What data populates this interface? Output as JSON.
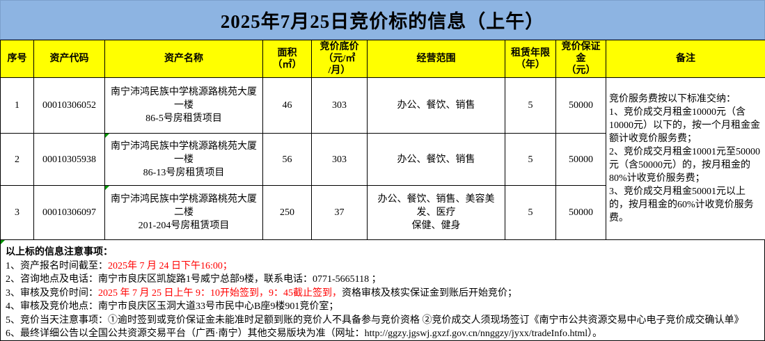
{
  "title": "2025年7月25日竞价标的信息（上午）",
  "colors": {
    "title_bg": "#8DB4E2",
    "header_bg": "#FFFF00",
    "text": "#000000",
    "highlight_red": "#FF0000",
    "marker_green": "#009900",
    "border": "#000000"
  },
  "table": {
    "headers": [
      {
        "id": "seq",
        "label": "序号"
      },
      {
        "id": "code",
        "label": "资产代码"
      },
      {
        "id": "name",
        "label": "资产名称"
      },
      {
        "id": "area",
        "label": "面积\n（㎡）"
      },
      {
        "id": "base-price",
        "label": "竞价底价\n（元/㎡\n/月）"
      },
      {
        "id": "scope",
        "label": "经营范围"
      },
      {
        "id": "lease-years",
        "label": "租赁年限\n（年）"
      },
      {
        "id": "deposit",
        "label": "竞价保证金\n（元）"
      },
      {
        "id": "remark",
        "label": "备注"
      }
    ],
    "rows": [
      {
        "seq": "1",
        "code": "00010306052",
        "name": "南宁沛鸿民族中学桃源路桃苑大厦一楼\n86-5号房租赁项目",
        "area": "46",
        "base_price": "303",
        "scope": "办公、餐饮、销售",
        "lease_years": "5",
        "deposit": "50000",
        "corner_marker": false
      },
      {
        "seq": "2",
        "code": "00010305938",
        "name": "南宁沛鸿民族中学桃源路桃苑大厦一楼\n86-13号房租赁项目",
        "area": "56",
        "base_price": "303",
        "scope": "办公、餐饮、销售",
        "lease_years": "5",
        "deposit": "50000",
        "corner_marker": true
      },
      {
        "seq": "3",
        "code": "00010306097",
        "name": "南宁沛鸿民族中学桃源路桃苑大厦二楼\n201-204号房租赁项目",
        "area": "250",
        "base_price": "37",
        "scope": "办公、餐饮、销售、美容美发、医疗\n保健、健身",
        "lease_years": "5",
        "deposit": "50000",
        "corner_marker": true
      }
    ],
    "remark": "竞价服务费按以下标准交纳：\n1、竞价成交月租金10000元（含10000元）以下的，按一个月租金金额计收竞价服务费；\n2、竞价成交月租金10001元至50000元（含50000元）的，按月租金的80%计收竞价服务费；\n3、竞价成交月租金50001元以上的，按月租金的60%计收竞价服务费。"
  },
  "notes": {
    "heading": "以上标的信息注意事项：",
    "corner_marker": true,
    "lines": [
      [
        {
          "t": "1、资产报名时间截至：",
          "c": "black"
        },
        {
          "t": "2025年 7 月 24 日下午16:00；",
          "c": "red"
        }
      ],
      [
        {
          "t": "2、咨询地点及电话：南宁市良庆区凯旋路1号威宁总部9楼，联系电话：0771-5665118 ；",
          "c": "black"
        }
      ],
      [
        {
          "t": "3、审核及竞价时间：",
          "c": "black"
        },
        {
          "t": "2025 年 7 月 25 日上午 9：10开始签到，9：45截止签到，",
          "c": "red"
        },
        {
          "t": "资格审核及核实保证金到账后开始竞价；",
          "c": "black"
        }
      ],
      [
        {
          "t": "4、审核及竞价地点：南宁市良庆区玉洞大道33号市民中心B座9楼901竞价室；",
          "c": "black"
        }
      ],
      [
        {
          "t": "5、竞价当天注意事项：①逾时签到或竞价保证金未能准时足额到账的竞价人不具备参与竞价资格 ②竞价成交人须现场签订《南宁市公共资源交易中心电子竞价成交确认单》",
          "c": "black"
        }
      ],
      [
        {
          "t": "6、最终详细公告以全国公共资源交易平台（广西·南宁）其他交易版块为准（网址：http://ggzy.jgswj.gxzf.gov.cn/nnggzy/jyxx/tradeInfo.html）。",
          "c": "black"
        }
      ]
    ]
  }
}
